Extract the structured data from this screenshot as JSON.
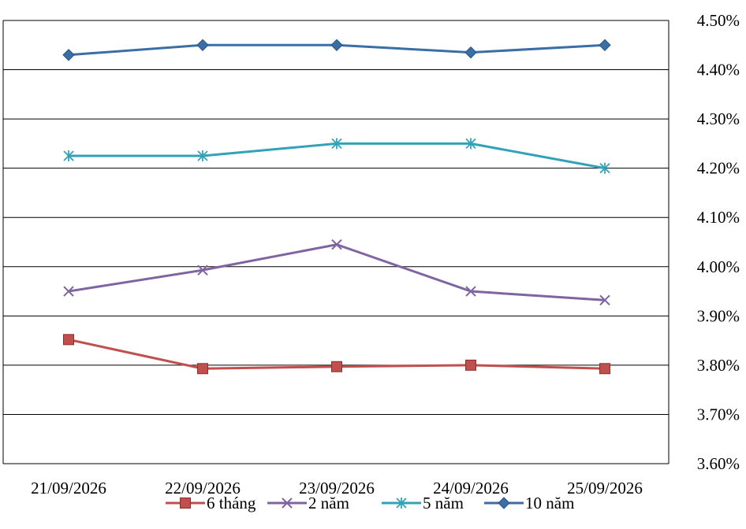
{
  "chart_data": {
    "type": "line",
    "categories": [
      "21/09/2026",
      "22/09/2026",
      "23/09/2026",
      "24/09/2026",
      "25/09/2026"
    ],
    "series": [
      {
        "name": "6 tháng",
        "color": "#c0504d",
        "marker": "square",
        "values": [
          3.852,
          3.793,
          3.797,
          3.8,
          3.793
        ]
      },
      {
        "name": "2 năm",
        "color": "#8064a2",
        "marker": "x",
        "values": [
          3.95,
          3.993,
          4.045,
          3.95,
          3.932
        ]
      },
      {
        "name": "5 năm",
        "color": "#31a2b8",
        "marker": "star",
        "values": [
          4.225,
          4.225,
          4.25,
          4.25,
          4.2
        ]
      },
      {
        "name": "10 năm",
        "color": "#3a6ea5",
        "marker": "diamond",
        "values": [
          4.43,
          4.45,
          4.45,
          4.435,
          4.45
        ]
      }
    ],
    "y_ticks": [
      "3.60%",
      "3.70%",
      "3.80%",
      "3.90%",
      "4.00%",
      "4.10%",
      "4.20%",
      "4.30%",
      "4.40%",
      "4.50%"
    ],
    "ylim": [
      3.6,
      4.5
    ],
    "y_axis_side": "right",
    "grid": true,
    "legend_position": "bottom",
    "title": "",
    "xlabel": "",
    "ylabel": ""
  }
}
